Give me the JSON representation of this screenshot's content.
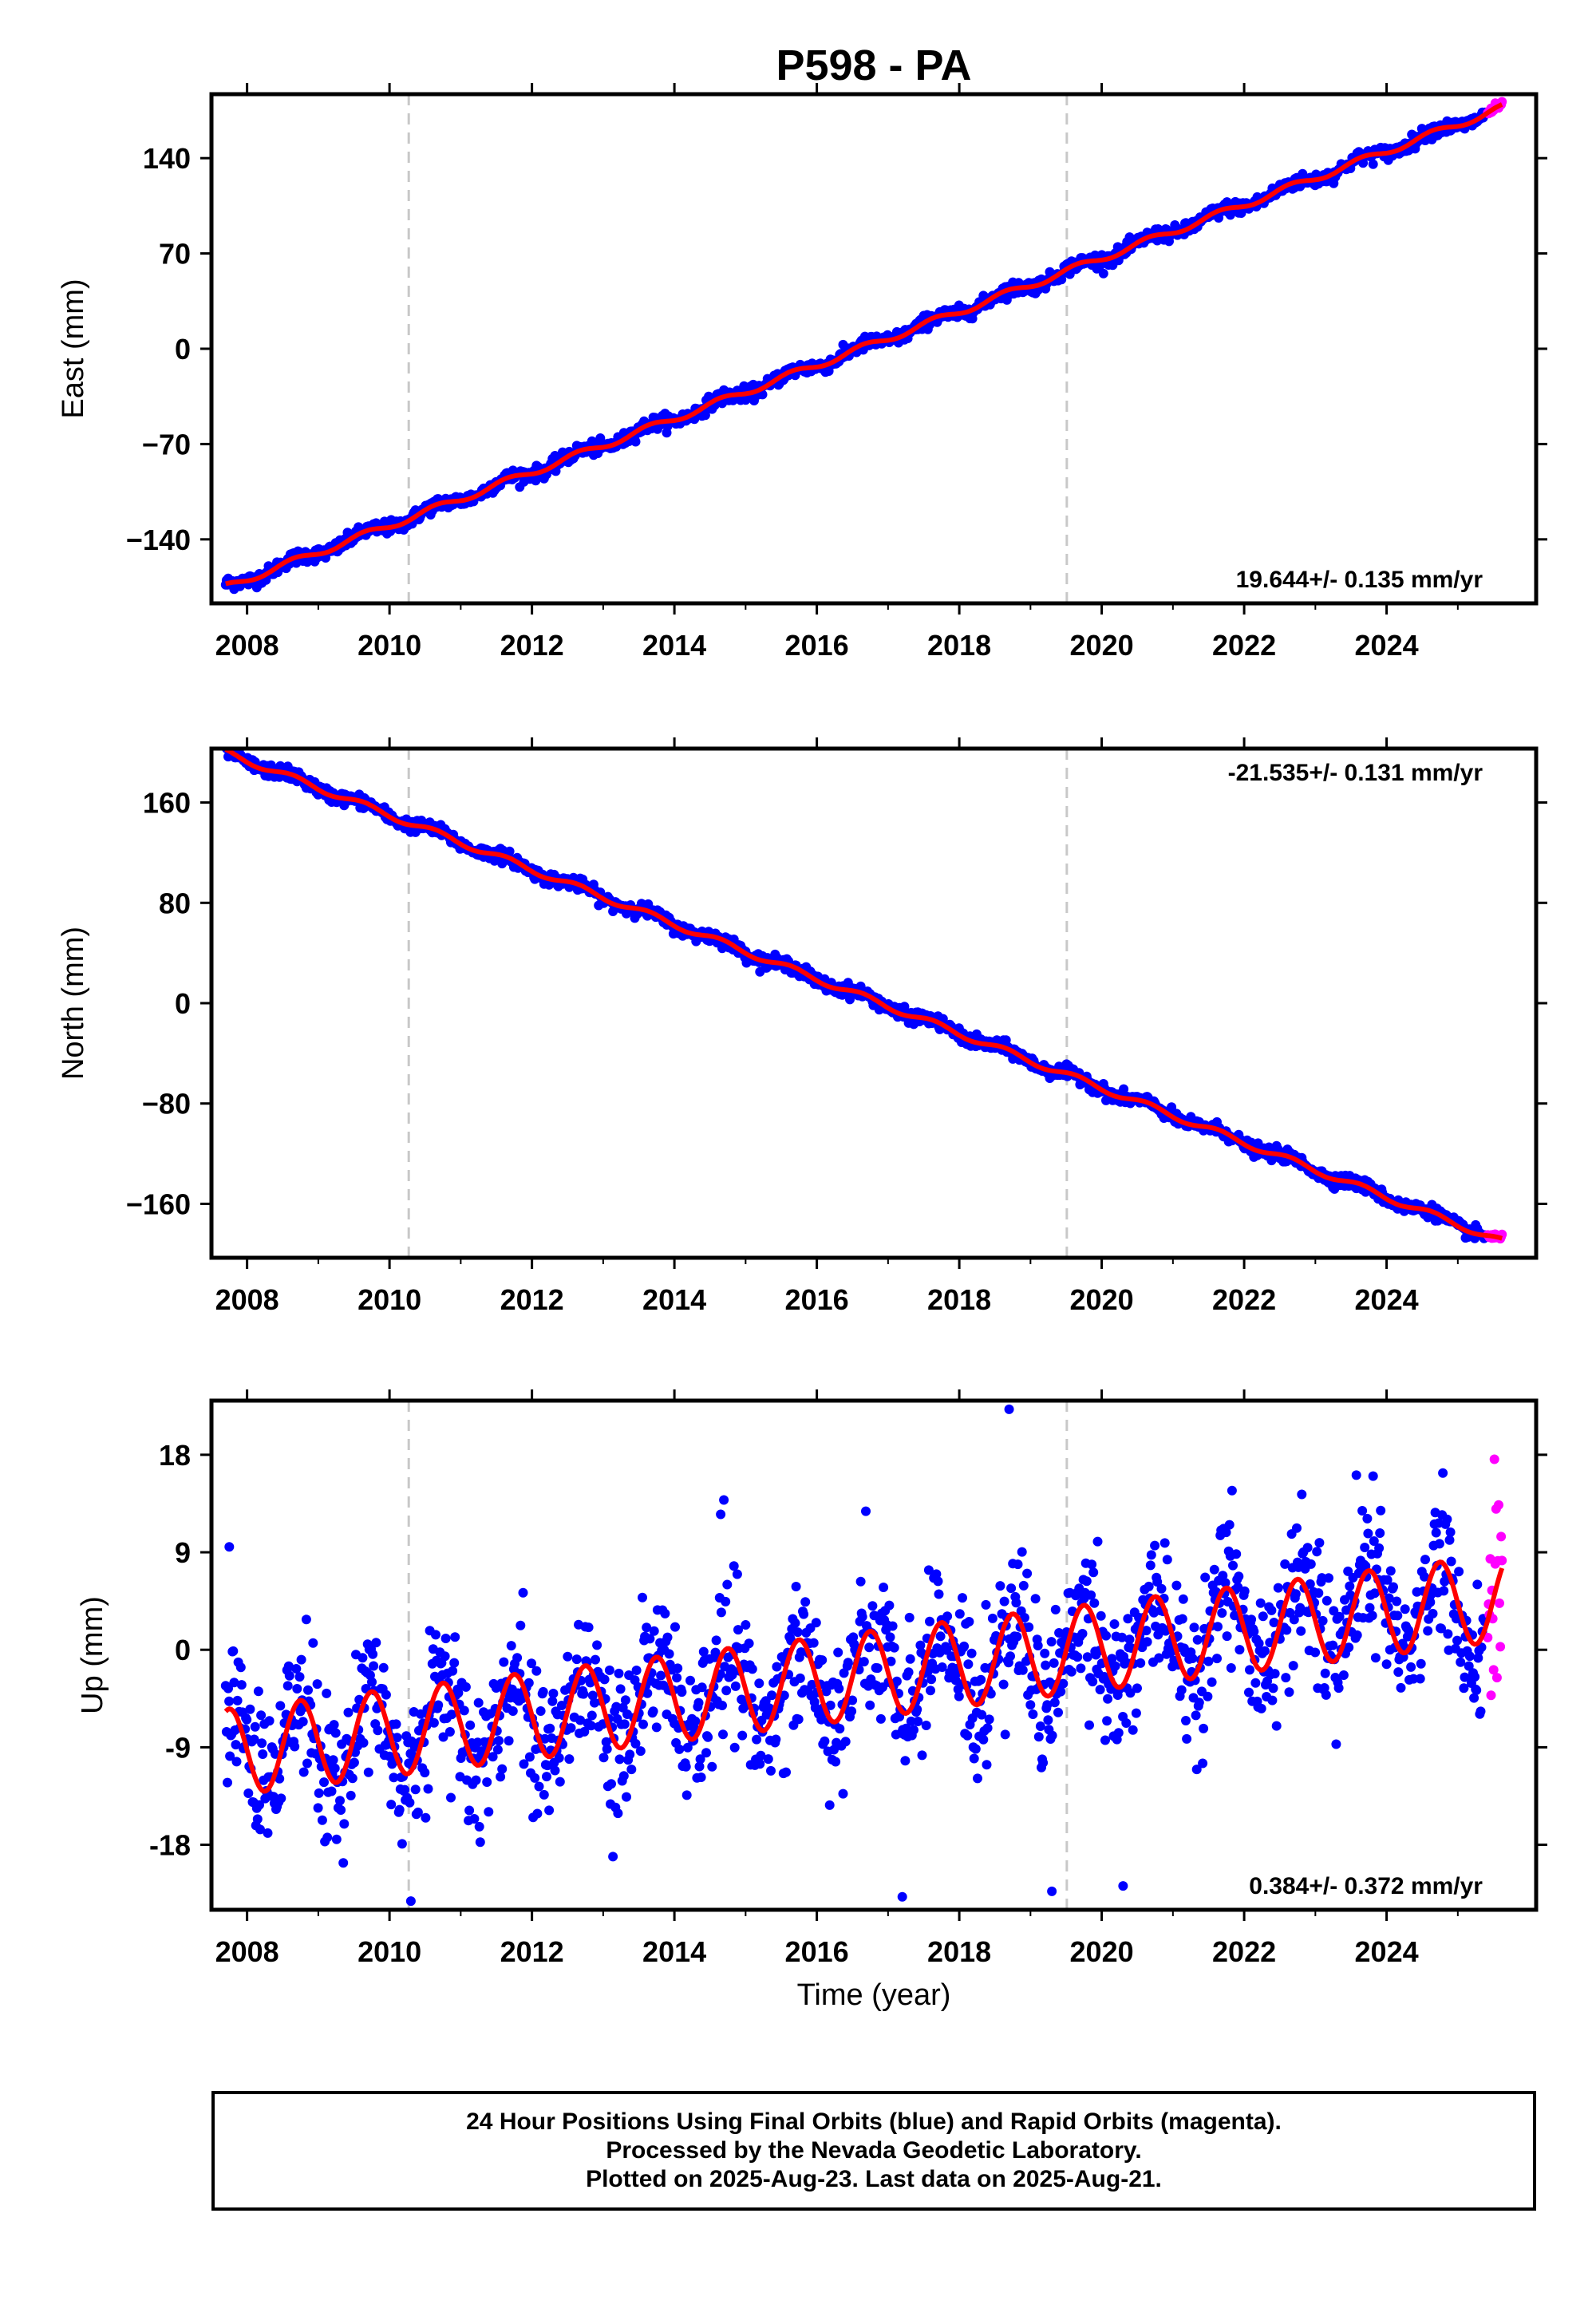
{
  "chart_data": {
    "title": "P598 - PA",
    "type": "scatter",
    "x_label": "Time (year)",
    "x_ticks": [
      "2008",
      "2010",
      "2012",
      "2014",
      "2016",
      "2018",
      "2020",
      "2022",
      "2024"
    ],
    "xlim": [
      2007.5,
      2026.1
    ],
    "vertical_dashed_lines": [
      2010.27,
      2019.51
    ],
    "series_colors": {
      "final_orbits": "#0000ff",
      "rapid_orbits": "#ff00ff",
      "model_fit": "#ff0000",
      "dashed_lines": "#c8c8c8"
    },
    "panels": [
      {
        "name": "east",
        "ylabel": "East (mm)",
        "yticks": [
          "140",
          "70",
          "0",
          "−70",
          "−140"
        ],
        "ytick_values": [
          140,
          70,
          0,
          -70,
          -140
        ],
        "ylim": [
          -187,
          187
        ],
        "rate_text": "19.644+/- 0.135 mm/yr",
        "rate_position": "bottom-right",
        "trend": {
          "start": [
            2007.7,
            -175
          ],
          "end": [
            2025.62,
            177
          ],
          "rate_mm_per_yr": 19.644
        },
        "seasonal_amplitude": 2.5,
        "noise": 2.5
      },
      {
        "name": "north",
        "ylabel": "North (mm)",
        "yticks": [
          "160",
          "80",
          "0",
          "−80",
          "−160"
        ],
        "ytick_values": [
          160,
          80,
          0,
          -80,
          -160
        ],
        "ylim": [
          -203,
          203
        ],
        "rate_text": "-21.535+/- 0.131 mm/yr",
        "rate_position": "top-right",
        "trend": {
          "start": [
            2007.7,
            200
          ],
          "end": [
            2025.62,
            -190
          ],
          "rate_mm_per_yr": -21.535
        },
        "seasonal_amplitude": 2.5,
        "noise": 2.5
      },
      {
        "name": "up",
        "ylabel": "Up (mm)",
        "yticks": [
          "18",
          "9",
          "0",
          "-9",
          "-18"
        ],
        "ytick_values": [
          18,
          9,
          0,
          -9,
          -18
        ],
        "ylim": [
          -24,
          23
        ],
        "rate_text": "0.384+/- 0.372 mm/yr",
        "rate_position": "bottom-right",
        "model": {
          "mean_start": -9.5,
          "mean_end": 4.8,
          "seasonal_amplitude": 4.0,
          "peak_phase_year": 0.75
        },
        "noise": 3.3,
        "outliers": [
          [
            2018.7,
            22.2
          ],
          [
            2017.2,
            -22.8
          ],
          [
            2019.3,
            -22.3
          ],
          [
            2020.3,
            -21.8
          ],
          [
            2010.3,
            -23.2
          ],
          [
            2007.75,
            9.5
          ],
          [
            2014.65,
            12.5
          ]
        ]
      }
    ]
  },
  "footer": {
    "line1": "24 Hour Positions Using Final Orbits (blue) and Rapid Orbits (magenta).",
    "line2": "Processed by the Nevada Geodetic Laboratory.",
    "line3": "Plotted on 2025-Aug-23. Last data on 2025-Aug-21."
  }
}
